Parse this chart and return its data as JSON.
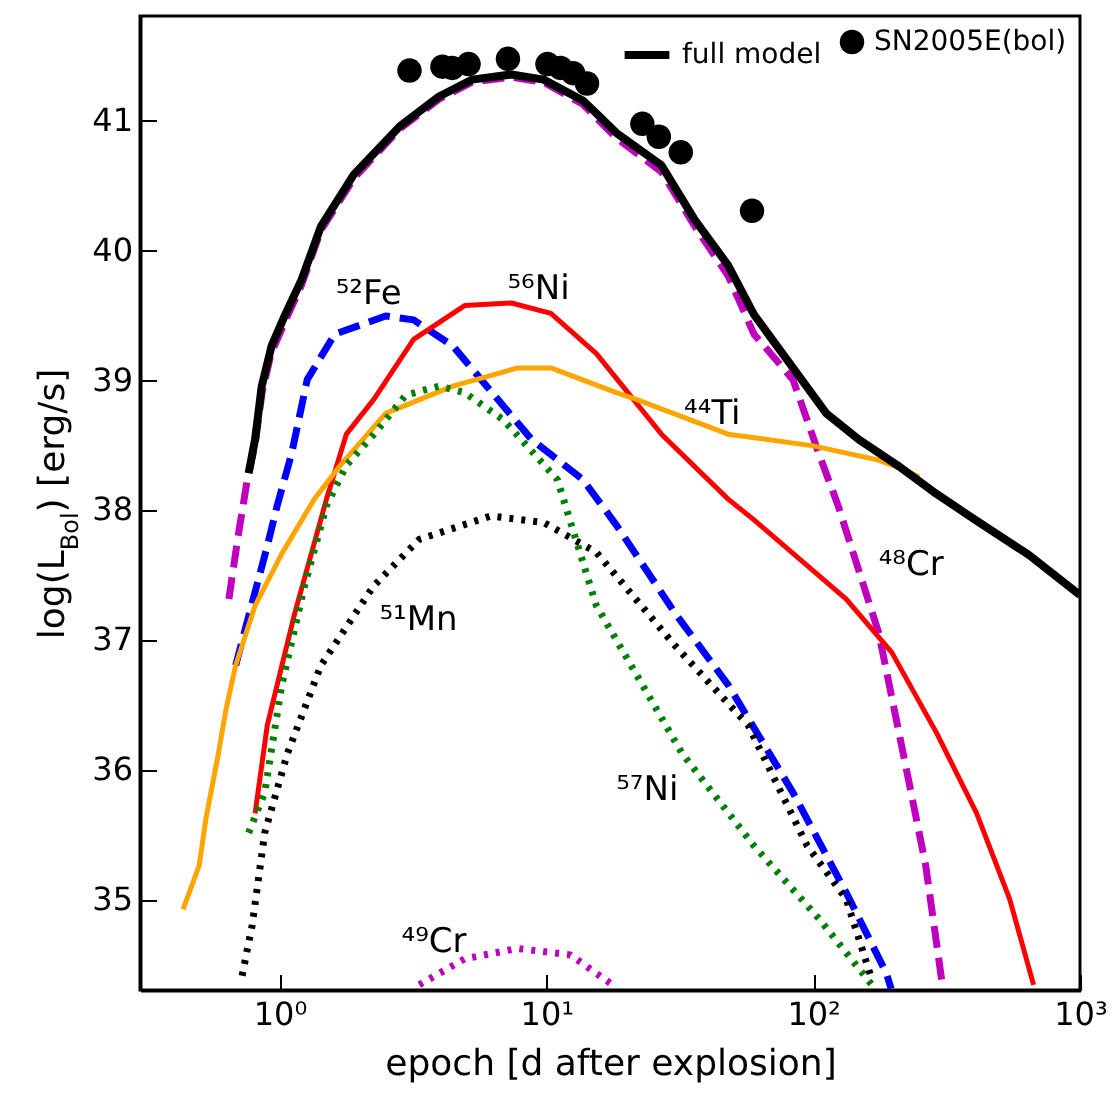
{
  "chart_data": {
    "type": "line",
    "xlabel": "epoch [d after explosion]",
    "ylabel": "log(L$_{Bol}$) [erg/s]",
    "log": "x",
    "xlim": [
      0.3,
      1000
    ],
    "ylim": [
      34.3,
      41.8
    ],
    "xticks": [
      {
        "value": 1,
        "label": "10⁰"
      },
      {
        "value": 10,
        "label": "10¹"
      },
      {
        "value": 100,
        "label": "10²"
      },
      {
        "value": 1000,
        "label": "10³"
      }
    ],
    "yticks": [
      35,
      36,
      37,
      38,
      39,
      40,
      41
    ],
    "legend": "top right",
    "series": [
      {
        "color": "#bf00bf",
        "line_style": "dashed",
        "x": [
          0.646,
          0.7,
          0.76,
          0.81,
          0.86,
          0.93,
          1.05,
          1.21,
          1.43,
          1.9,
          2.82,
          3.96,
          5.27,
          7.4,
          9.77,
          13.7,
          18.3,
          27,
          36,
          48,
          60,
          84,
          105,
          124,
          176,
          222,
          264,
          303
        ],
        "values": [
          37.31,
          37.8,
          38.25,
          38.5,
          38.9,
          39.2,
          39.45,
          39.73,
          40.15,
          40.55,
          40.93,
          41.16,
          41.29,
          41.33,
          41.29,
          41.12,
          40.86,
          40.6,
          40.18,
          39.8,
          39.35,
          39.0,
          38.43,
          38.03,
          37.05,
          36.03,
          35.26,
          34.38
        ]
      },
      {
        "color": "#0000ff",
        "line_style": "dashed",
        "x": [
          0.685,
          0.9,
          0.98,
          1.11,
          1.27,
          1.61,
          2.5,
          3.18,
          4.46,
          6.26,
          8.8,
          13.7,
          18.3,
          30.4,
          48,
          84,
          133,
          188,
          196
        ],
        "values": [
          36.8,
          37.72,
          38.03,
          38.43,
          39.0,
          39.35,
          39.49,
          39.46,
          39.26,
          38.9,
          38.54,
          38.23,
          37.88,
          37.2,
          36.65,
          35.82,
          35.05,
          34.43,
          34.31
        ]
      },
      {
        "color": "#ff0000",
        "line_style": "solid",
        "x": [
          0.81,
          0.9,
          1.14,
          1.5,
          1.78,
          2.26,
          3.18,
          4.94,
          7.4,
          10.4,
          15.4,
          27,
          48,
          60,
          133,
          197,
          290,
          410,
          545,
          670
        ],
        "values": [
          35.66,
          36.34,
          37.2,
          38.08,
          38.58,
          38.85,
          39.31,
          39.57,
          39.59,
          39.51,
          39.2,
          38.58,
          38.08,
          37.92,
          37.31,
          36.9,
          36.28,
          35.66,
          35.0,
          34.34
        ]
      },
      {
        "color": "#ffa500",
        "line_style": "solid",
        "x": [
          0.435,
          0.5,
          0.53,
          0.59,
          0.63,
          0.685,
          0.81,
          1.02,
          1.35,
          1.69,
          2.5,
          4.46,
          7.8,
          10.4,
          18.3,
          21.6,
          48,
          100,
          176,
          222,
          250
        ],
        "values": [
          34.92,
          35.26,
          35.62,
          36.12,
          36.46,
          36.8,
          37.26,
          37.66,
          38.08,
          38.34,
          38.74,
          38.95,
          39.09,
          39.09,
          38.9,
          38.85,
          38.58,
          38.49,
          38.38,
          38.3,
          38.25
        ]
      },
      {
        "color": "#008000",
        "line_style": "dotted",
        "x": [
          0.766,
          0.88,
          1.02,
          1.24,
          1.5,
          1.78,
          2.26,
          2.97,
          3.96,
          4.94,
          6.9,
          11,
          15.4,
          32.3,
          60,
          105,
          166
        ],
        "values": [
          35.51,
          35.82,
          36.65,
          37.41,
          38.03,
          38.34,
          38.58,
          38.88,
          38.95,
          38.9,
          38.69,
          38.23,
          37.26,
          36.12,
          35.41,
          34.85,
          34.34
        ]
      },
      {
        "color": "#000000",
        "line_style": "dotted",
        "x": [
          0.724,
          0.79,
          0.88,
          1.07,
          1.43,
          2.25,
          3.34,
          6.2,
          9.77,
          15.4,
          30.4,
          57,
          95,
          133,
          166
        ],
        "values": [
          34.41,
          34.8,
          35.51,
          36.12,
          36.8,
          37.41,
          37.77,
          37.95,
          37.9,
          37.67,
          36.95,
          36.34,
          35.41,
          35.0,
          34.38
        ]
      },
      {
        "color": "#bf00bf",
        "line_style": "dotted",
        "x": [
          3.34,
          4.94,
          7.8,
          12.3,
          17.7
        ],
        "values": [
          34.34,
          34.54,
          34.62,
          34.57,
          34.34
        ]
      },
      {
        "name": "full model",
        "color": "#000000",
        "line_style": "solid",
        "x": [
          0.766,
          0.81,
          0.858,
          0.934,
          1.05,
          1.21,
          1.43,
          1.9,
          2.82,
          3.96,
          5.27,
          7.4,
          9.77,
          13.7,
          15.4,
          18.3,
          27,
          36,
          48,
          60,
          80,
          112,
          148,
          207,
          290,
          405,
          643,
          1000
        ],
        "values": [
          38.28,
          38.54,
          38.95,
          39.26,
          39.5,
          39.77,
          40.18,
          40.58,
          40.95,
          41.18,
          41.31,
          41.35,
          41.31,
          41.15,
          41.05,
          40.9,
          40.65,
          40.23,
          39.88,
          39.5,
          39.15,
          38.74,
          38.54,
          38.34,
          38.12,
          37.92,
          37.65,
          37.34
        ]
      },
      {
        "type": "scatter",
        "name": "SN2005E(bol)",
        "color": "#000000",
        "marker": "circle",
        "x": [
          3.07,
          4.08,
          4.44,
          5.11,
          7.18,
          10.1,
          11.3,
          12.6,
          14.2,
          22.9,
          26.4,
          31.9,
          59.0
        ],
        "values": [
          41.38,
          41.41,
          41.4,
          41.43,
          41.47,
          41.43,
          41.4,
          41.36,
          41.28,
          40.97,
          40.87,
          40.75,
          40.3
        ]
      }
    ],
    "annotations": [
      {
        "text": "⁵²Fe",
        "x": 2.5,
        "y": 39.49
      },
      {
        "text": "⁵⁶Ni",
        "x": 7.4,
        "y": 39.59
      },
      {
        "text": "⁴⁴Ti",
        "x": 48,
        "y": 38.58
      },
      {
        "text": "⁴⁸Cr",
        "x": 176,
        "y": 37.05
      },
      {
        "text": "⁵¹Mn",
        "x": 2.25,
        "y": 37.41
      },
      {
        "text": "⁵⁷Ni",
        "x": 32.3,
        "y": 36.12
      },
      {
        "text": "⁴⁹Cr",
        "x": 7.8,
        "y": 34.62
      }
    ]
  }
}
